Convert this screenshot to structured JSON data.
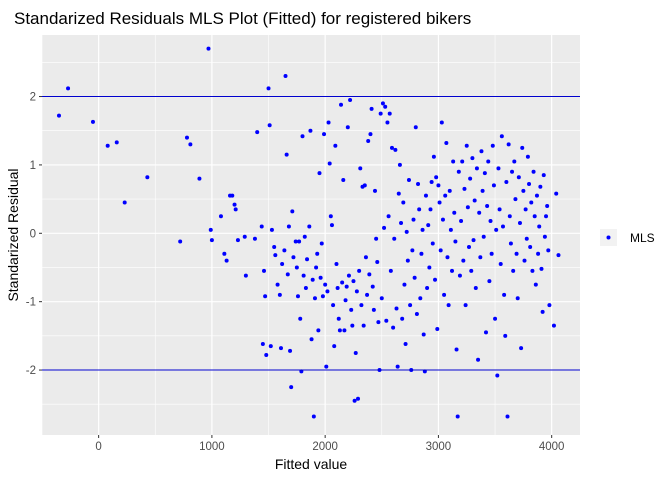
{
  "chart_data": {
    "type": "scatter",
    "title": "Standarized Residuals MLS Plot (Fitted) for registered bikers",
    "xlabel": "Fitted value",
    "ylabel": "Standarized Residual",
    "xlim": [
      -500,
      4250
    ],
    "ylim": [
      -2.95,
      2.9
    ],
    "x_ticks": [
      0,
      1000,
      2000,
      3000,
      4000
    ],
    "y_ticks": [
      -2,
      -1,
      0,
      1,
      2
    ],
    "x_tick_labels": [
      "0",
      "1000",
      "2000",
      "3000",
      "4000"
    ],
    "y_tick_labels": [
      "-2",
      "-1",
      "0",
      "1",
      "2"
    ],
    "reference_lines": [
      2,
      -2
    ],
    "grid": true,
    "legend": {
      "position": "right",
      "entries": [
        "MLS"
      ]
    },
    "colors": {
      "points": "#0000ff",
      "reference_line": "#0000cd",
      "panel": "#ebebeb",
      "grid": "#ffffff"
    },
    "series": [
      {
        "name": "MLS",
        "points": [
          [
            -350,
            1.72
          ],
          [
            -270,
            2.12
          ],
          [
            -50,
            1.63
          ],
          [
            80,
            1.28
          ],
          [
            160,
            1.33
          ],
          [
            230,
            0.45
          ],
          [
            430,
            0.82
          ],
          [
            720,
            -0.12
          ],
          [
            780,
            1.4
          ],
          [
            810,
            1.3
          ],
          [
            890,
            0.8
          ],
          [
            970,
            2.7
          ],
          [
            990,
            0.05
          ],
          [
            1000,
            -0.1
          ],
          [
            1080,
            0.25
          ],
          [
            1110,
            -0.3
          ],
          [
            1130,
            -0.4
          ],
          [
            1160,
            0.55
          ],
          [
            1180,
            0.55
          ],
          [
            1200,
            0.42
          ],
          [
            1210,
            0.35
          ],
          [
            1230,
            -0.1
          ],
          [
            1290,
            -0.05
          ],
          [
            1300,
            -0.62
          ],
          [
            1380,
            -0.08
          ],
          [
            1400,
            1.48
          ],
          [
            1440,
            0.1
          ],
          [
            1450,
            -1.62
          ],
          [
            1460,
            -0.55
          ],
          [
            1470,
            -0.92
          ],
          [
            1480,
            -1.78
          ],
          [
            1500,
            2.12
          ],
          [
            1510,
            1.58
          ],
          [
            1520,
            -1.65
          ],
          [
            1530,
            0.05
          ],
          [
            1550,
            -0.2
          ],
          [
            1560,
            -0.32
          ],
          [
            1580,
            -0.75
          ],
          [
            1600,
            -0.9
          ],
          [
            1610,
            -1.68
          ],
          [
            1620,
            -0.45
          ],
          [
            1640,
            -0.25
          ],
          [
            1650,
            2.3
          ],
          [
            1660,
            1.15
          ],
          [
            1670,
            -0.6
          ],
          [
            1680,
            0.1
          ],
          [
            1690,
            -1.72
          ],
          [
            1700,
            -2.25
          ],
          [
            1710,
            0.32
          ],
          [
            1720,
            -0.35
          ],
          [
            1740,
            -0.12
          ],
          [
            1750,
            -0.5
          ],
          [
            1760,
            -0.92
          ],
          [
            1770,
            -0.12
          ],
          [
            1780,
            -1.25
          ],
          [
            1790,
            -2.02
          ],
          [
            1800,
            1.42
          ],
          [
            1810,
            -0.62
          ],
          [
            1820,
            -0.05
          ],
          [
            1830,
            -0.8
          ],
          [
            1840,
            -0.38
          ],
          [
            1860,
            0.1
          ],
          [
            1870,
            1.5
          ],
          [
            1880,
            -1.55
          ],
          [
            1890,
            -0.68
          ],
          [
            1900,
            -2.68
          ],
          [
            1910,
            -0.95
          ],
          [
            1920,
            -0.5
          ],
          [
            1930,
            -0.3
          ],
          [
            1940,
            -1.42
          ],
          [
            1950,
            0.88
          ],
          [
            1960,
            -0.65
          ],
          [
            1970,
            -0.15
          ],
          [
            1980,
            -0.92
          ],
          [
            1990,
            1.45
          ],
          [
            2000,
            -0.75
          ],
          [
            2010,
            -1.95
          ],
          [
            2020,
            -0.85
          ],
          [
            2030,
            1.62
          ],
          [
            2040,
            1.02
          ],
          [
            2050,
            0.25
          ],
          [
            2060,
            0.12
          ],
          [
            2070,
            -1.05
          ],
          [
            2080,
            -1.65
          ],
          [
            2090,
            1.28
          ],
          [
            2100,
            -0.45
          ],
          [
            2110,
            -0.8
          ],
          [
            2120,
            -1.25
          ],
          [
            2130,
            -1.42
          ],
          [
            2140,
            1.88
          ],
          [
            2150,
            -0.72
          ],
          [
            2160,
            0.78
          ],
          [
            2170,
            -1.42
          ],
          [
            2180,
            -0.98
          ],
          [
            2190,
            -0.78
          ],
          [
            2200,
            1.55
          ],
          [
            2210,
            -0.62
          ],
          [
            2220,
            1.95
          ],
          [
            2230,
            -1.12
          ],
          [
            2240,
            -1.35
          ],
          [
            2250,
            -0.7
          ],
          [
            2260,
            -2.45
          ],
          [
            2270,
            -1.75
          ],
          [
            2280,
            -0.85
          ],
          [
            2290,
            -2.42
          ],
          [
            2300,
            -0.55
          ],
          [
            2310,
            0.95
          ],
          [
            2320,
            -1.05
          ],
          [
            2330,
            0.68
          ],
          [
            2340,
            -1.35
          ],
          [
            2350,
            0.7
          ],
          [
            2360,
            -0.35
          ],
          [
            2370,
            -0.9
          ],
          [
            2380,
            1.35
          ],
          [
            2390,
            -0.6
          ],
          [
            2400,
            1.45
          ],
          [
            2410,
            1.82
          ],
          [
            2420,
            -0.78
          ],
          [
            2430,
            -1.12
          ],
          [
            2440,
            0.62
          ],
          [
            2450,
            -0.08
          ],
          [
            2460,
            -0.42
          ],
          [
            2470,
            -1.3
          ],
          [
            2480,
            -2.0
          ],
          [
            2490,
            1.75
          ],
          [
            2500,
            -0.95
          ],
          [
            2510,
            1.9
          ],
          [
            2520,
            0.08
          ],
          [
            2530,
            1.85
          ],
          [
            2540,
            -1.28
          ],
          [
            2550,
            1.62
          ],
          [
            2560,
            0.25
          ],
          [
            2570,
            1.75
          ],
          [
            2580,
            -0.55
          ],
          [
            2590,
            1.25
          ],
          [
            2600,
            -1.38
          ],
          [
            2610,
            -0.08
          ],
          [
            2620,
            1.22
          ],
          [
            2630,
            -1.1
          ],
          [
            2640,
            -1.95
          ],
          [
            2650,
            0.58
          ],
          [
            2660,
            1.0
          ],
          [
            2670,
            0.15
          ],
          [
            2680,
            -1.25
          ],
          [
            2690,
            0.45
          ],
          [
            2700,
            -0.75
          ],
          [
            2710,
            -1.62
          ],
          [
            2720,
            0.02
          ],
          [
            2730,
            -0.4
          ],
          [
            2740,
            0.78
          ],
          [
            2750,
            -1.05
          ],
          [
            2760,
            -2.0
          ],
          [
            2770,
            -0.25
          ],
          [
            2780,
            0.2
          ],
          [
            2790,
            -0.65
          ],
          [
            2800,
            1.55
          ],
          [
            2810,
            -1.18
          ],
          [
            2820,
            0.72
          ],
          [
            2830,
            0.35
          ],
          [
            2840,
            -0.95
          ],
          [
            2850,
            -0.3
          ],
          [
            2860,
            0.05
          ],
          [
            2870,
            -1.48
          ],
          [
            2880,
            -2.02
          ],
          [
            2890,
            0.55
          ],
          [
            2900,
            -0.8
          ],
          [
            2910,
            0.12
          ],
          [
            2920,
            -0.5
          ],
          [
            2930,
            0.35
          ],
          [
            2940,
            0.75
          ],
          [
            2950,
            -0.15
          ],
          [
            2960,
            1.12
          ],
          [
            2970,
            -0.68
          ],
          [
            2980,
            0.82
          ],
          [
            2990,
            -1.4
          ],
          [
            3000,
            0.7
          ],
          [
            3010,
            0.45
          ],
          [
            3020,
            -0.25
          ],
          [
            3030,
            1.62
          ],
          [
            3040,
            0.2
          ],
          [
            3050,
            -0.9
          ],
          [
            3060,
            0.55
          ],
          [
            3070,
            1.32
          ],
          [
            3080,
            -0.35
          ],
          [
            3090,
            -1.05
          ],
          [
            3100,
            0.62
          ],
          [
            3110,
            0.05
          ],
          [
            3120,
            -0.55
          ],
          [
            3130,
            1.05
          ],
          [
            3140,
            0.3
          ],
          [
            3150,
            -0.12
          ],
          [
            3160,
            -1.7
          ],
          [
            3170,
            -2.68
          ],
          [
            3180,
            0.9
          ],
          [
            3190,
            -0.62
          ],
          [
            3200,
            0.18
          ],
          [
            3210,
            1.05
          ],
          [
            3220,
            -0.4
          ],
          [
            3230,
            0.65
          ],
          [
            3240,
            -1.05
          ],
          [
            3250,
            1.28
          ],
          [
            3260,
            0.38
          ],
          [
            3270,
            -0.2
          ],
          [
            3280,
            0.8
          ],
          [
            3290,
            -0.55
          ],
          [
            3300,
            1.1
          ],
          [
            3310,
            -0.1
          ],
          [
            3320,
            0.48
          ],
          [
            3330,
            -0.8
          ],
          [
            3340,
            0.95
          ],
          [
            3350,
            -1.85
          ],
          [
            3360,
            0.3
          ],
          [
            3370,
            -0.35
          ],
          [
            3380,
            1.2
          ],
          [
            3390,
            0.62
          ],
          [
            3400,
            -0.05
          ],
          [
            3410,
            0.88
          ],
          [
            3420,
            -1.45
          ],
          [
            3430,
            0.4
          ],
          [
            3440,
            1.05
          ],
          [
            3450,
            -0.7
          ],
          [
            3460,
            0.18
          ],
          [
            3470,
            -0.3
          ],
          [
            3480,
            1.28
          ],
          [
            3490,
            0.7
          ],
          [
            3500,
            -1.25
          ],
          [
            3510,
            0.05
          ],
          [
            3520,
            -2.08
          ],
          [
            3530,
            0.95
          ],
          [
            3540,
            0.35
          ],
          [
            3550,
            -0.45
          ],
          [
            3560,
            1.42
          ],
          [
            3570,
            0.1
          ],
          [
            3580,
            -0.9
          ],
          [
            3590,
            -1.5
          ],
          [
            3600,
            0.75
          ],
          [
            3610,
            -2.68
          ],
          [
            3620,
            1.3
          ],
          [
            3630,
            0.25
          ],
          [
            3640,
            -0.15
          ],
          [
            3650,
            0.9
          ],
          [
            3660,
            -0.55
          ],
          [
            3670,
            1.05
          ],
          [
            3680,
            0.5
          ],
          [
            3690,
            -0.3
          ],
          [
            3700,
            -0.95
          ],
          [
            3710,
            0.82
          ],
          [
            3720,
            0.15
          ],
          [
            3730,
            -1.68
          ],
          [
            3740,
            1.25
          ],
          [
            3750,
            0.62
          ],
          [
            3760,
            -0.4
          ],
          [
            3770,
            0.35
          ],
          [
            3780,
            -0.08
          ],
          [
            3790,
            1.12
          ],
          [
            3800,
            0.72
          ],
          [
            3810,
            -0.2
          ],
          [
            3820,
            0.45
          ],
          [
            3830,
            -0.55
          ],
          [
            3840,
            0.9
          ],
          [
            3850,
            0.25
          ],
          [
            3860,
            -0.75
          ],
          [
            3870,
            0.55
          ],
          [
            3880,
            -0.3
          ],
          [
            3890,
            0.1
          ],
          [
            3900,
            0.68
          ],
          [
            3910,
            -0.52
          ],
          [
            3920,
            -1.15
          ],
          [
            3930,
            0.85
          ],
          [
            3940,
            -0.05
          ],
          [
            3950,
            0.25
          ],
          [
            3960,
            0.4
          ],
          [
            3970,
            -0.25
          ],
          [
            3980,
            -1.05
          ],
          [
            4020,
            -1.35
          ],
          [
            4040,
            0.58
          ],
          [
            4060,
            -0.32
          ]
        ]
      }
    ]
  }
}
